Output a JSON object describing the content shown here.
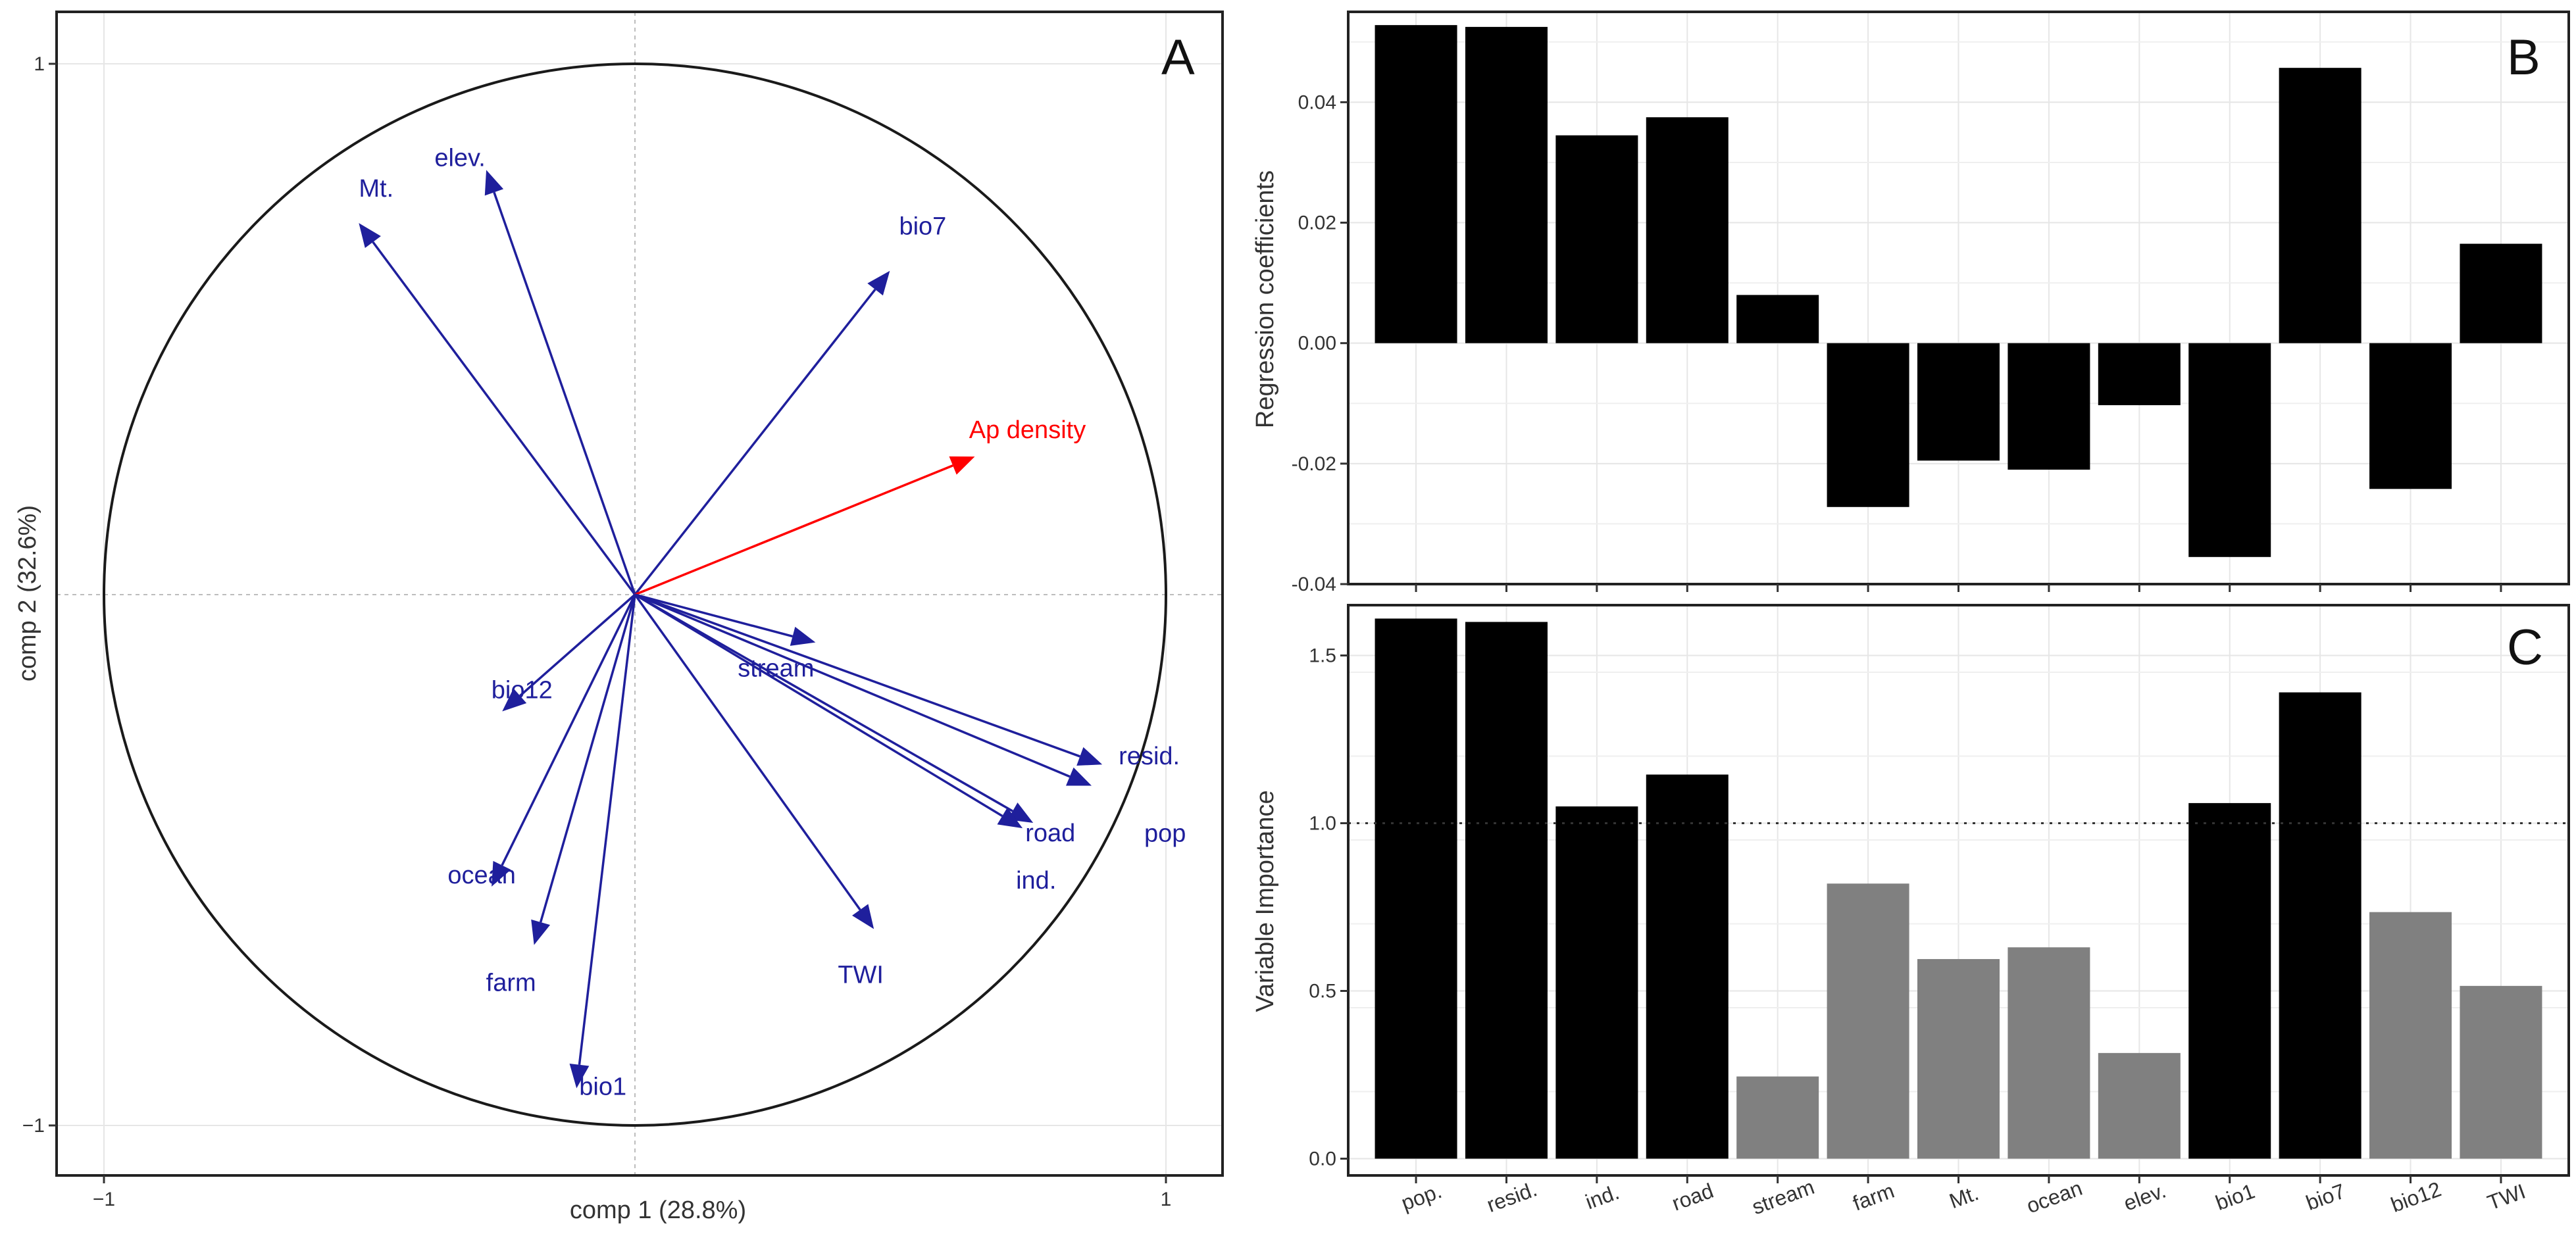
{
  "chart_data": [
    {
      "panel": "A",
      "type": "scatter",
      "subtype": "correlation-circle",
      "xlabel": "comp 1 (28.8%)",
      "ylabel": "comp 2 (32.6%)",
      "xlim": [
        -1,
        1
      ],
      "ylim": [
        -1,
        1
      ],
      "xticks": [
        -1,
        1
      ],
      "yticks": [
        1,
        -1
      ],
      "x_tick_labels": [
        "−1",
        "1"
      ],
      "y_tick_labels": [
        "1",
        "−1"
      ],
      "vectors": [
        {
          "name": "Mt.",
          "x": -0.52,
          "y": 0.7,
          "color": "#1f1f9c"
        },
        {
          "name": "elev.",
          "x": -0.28,
          "y": 0.8,
          "color": "#1f1f9c"
        },
        {
          "name": "bio7",
          "x": 0.48,
          "y": 0.61,
          "color": "#1f1f9c"
        },
        {
          "name": "Ap density",
          "x": 0.64,
          "y": 0.26,
          "color": "#ff0000"
        },
        {
          "name": "stream",
          "x": 0.34,
          "y": -0.09,
          "color": "#1f1f9c"
        },
        {
          "name": "resid.",
          "x": 0.88,
          "y": -0.32,
          "color": "#1f1f9c"
        },
        {
          "name": "pop",
          "x": 0.86,
          "y": -0.36,
          "color": "#1f1f9c"
        },
        {
          "name": "road",
          "x": 0.75,
          "y": -0.43,
          "color": "#1f1f9c"
        },
        {
          "name": "ind.",
          "x": 0.73,
          "y": -0.44,
          "color": "#1f1f9c"
        },
        {
          "name": "TWI",
          "x": 0.45,
          "y": -0.63,
          "color": "#1f1f9c"
        },
        {
          "name": "bio12",
          "x": -0.25,
          "y": -0.22,
          "color": "#1f1f9c"
        },
        {
          "name": "ocean",
          "x": -0.27,
          "y": -0.55,
          "color": "#1f1f9c"
        },
        {
          "name": "farm",
          "x": -0.19,
          "y": -0.66,
          "color": "#1f1f9c"
        },
        {
          "name": "bio1",
          "x": -0.11,
          "y": -0.93,
          "color": "#1f1f9c"
        }
      ]
    },
    {
      "panel": "B",
      "type": "bar",
      "ylabel": "Regression coefficients",
      "xlabel": "",
      "ylim": [
        -0.04,
        0.055
      ],
      "yticks": [
        -0.04,
        -0.02,
        0.0,
        0.02,
        0.04
      ],
      "y_tick_labels": [
        "-0.04",
        "-0.02",
        "0.00",
        "0.02",
        "0.04"
      ],
      "categories": [
        "pop.",
        "resid.",
        "ind.",
        "road",
        "stream",
        "farm",
        "Mt.",
        "ocean",
        "elev.",
        "bio1",
        "bio7",
        "bio12",
        "TWI"
      ],
      "values": [
        0.0528,
        0.0525,
        0.0345,
        0.0375,
        0.008,
        -0.0272,
        -0.0195,
        -0.021,
        -0.0103,
        -0.0355,
        0.0457,
        -0.0242,
        0.0165
      ],
      "bar_color": "#000000"
    },
    {
      "panel": "C",
      "type": "bar",
      "ylabel": "Variable Importance",
      "xlabel": "",
      "ylim": [
        -0.05,
        1.65
      ],
      "yticks": [
        0.0,
        0.5,
        1.0,
        1.5
      ],
      "y_tick_labels": [
        "0.0",
        "0.5",
        "1.0",
        "1.5"
      ],
      "reference_line": 1.0,
      "categories": [
        "pop.",
        "resid.",
        "ind.",
        "road",
        "stream",
        "farm",
        "Mt.",
        "ocean",
        "elev.",
        "bio1",
        "bio7",
        "bio12",
        "TWI"
      ],
      "values": [
        1.61,
        1.6,
        1.05,
        1.145,
        0.245,
        0.82,
        0.595,
        0.63,
        0.315,
        1.06,
        1.39,
        0.735,
        0.515
      ],
      "colors": [
        "#000000",
        "#000000",
        "#000000",
        "#000000",
        "#808080",
        "#808080",
        "#808080",
        "#808080",
        "#808080",
        "#000000",
        "#000000",
        "#808080",
        "#808080"
      ]
    }
  ]
}
